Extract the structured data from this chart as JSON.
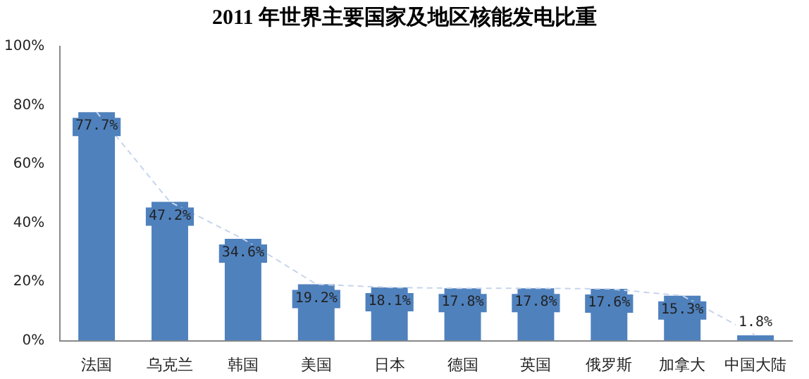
{
  "chart_data": {
    "type": "bar",
    "title": "2011 年世界主要国家及地区核能发电比重",
    "categories": [
      "法国",
      "乌克兰",
      "韩国",
      "美国",
      "日本",
      "德国",
      "英国",
      "俄罗斯",
      "加拿大",
      "中国大陆"
    ],
    "series": [
      {
        "color": "#4f81bd",
        "values": [
          77.7,
          47.2,
          34.6,
          19.2,
          18.1,
          17.8,
          17.8,
          17.6,
          15.3,
          1.8
        ],
        "value_labels": [
          "77.7%",
          "47.2%",
          "34.6%",
          "19.2%",
          "18.1%",
          "17.8%",
          "17.8%",
          "17.6%",
          "15.3%",
          "1.8%"
        ]
      },
      {
        "type": "line",
        "color": "#c6d4ec",
        "line_style": "dashed",
        "marker": "none",
        "values": [
          77.7,
          47.2,
          34.6,
          19.2,
          18.1,
          17.8,
          17.8,
          17.6,
          15.3,
          1.8
        ]
      }
    ],
    "ylim": [
      0,
      100
    ],
    "yticks": [
      {
        "value": 0,
        "label": "0%"
      },
      {
        "value": 20,
        "label": "20%"
      },
      {
        "value": 40,
        "label": "40%"
      },
      {
        "value": 60,
        "label": "60%"
      },
      {
        "value": 80,
        "label": "80%"
      },
      {
        "value": 100,
        "label": "100%"
      }
    ],
    "grid": false,
    "legend": false
  }
}
